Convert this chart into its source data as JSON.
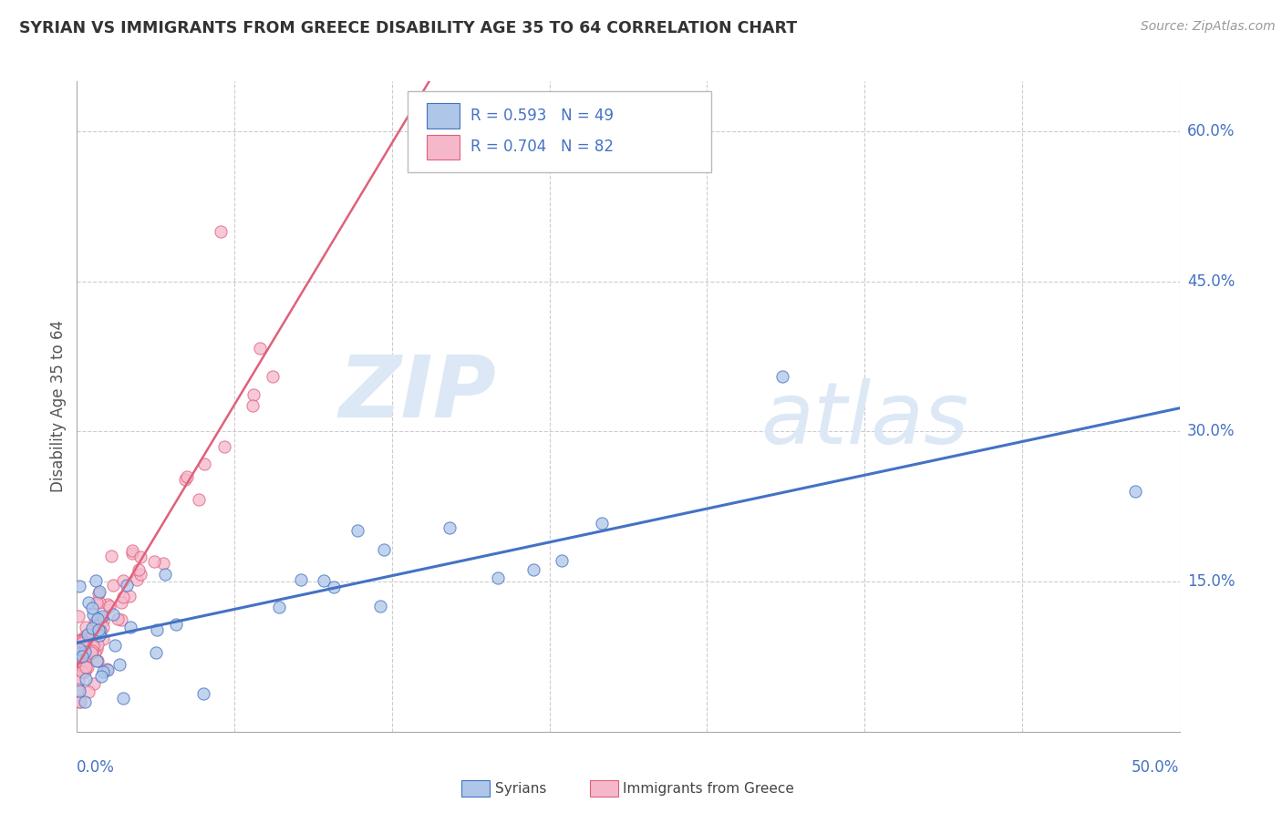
{
  "title": "SYRIAN VS IMMIGRANTS FROM GREECE DISABILITY AGE 35 TO 64 CORRELATION CHART",
  "source": "Source: ZipAtlas.com",
  "ylabel": "Disability Age 35 to 64",
  "legend_label1": "Syrians",
  "legend_label2": "Immigrants from Greece",
  "r1": 0.593,
  "n1": 49,
  "r2": 0.704,
  "n2": 82,
  "color_syrian_fill": "#aec6e8",
  "color_syrian_edge": "#4472c4",
  "color_greece_fill": "#f5b8cb",
  "color_greece_edge": "#e0607a",
  "color_line_syrian": "#4472c4",
  "color_line_greece": "#e0607a",
  "watermark_zip": "ZIP",
  "watermark_atlas": "atlas",
  "xlim": [
    0.0,
    0.5
  ],
  "ylim": [
    0.0,
    0.65
  ],
  "yticks": [
    0.0,
    0.15,
    0.3,
    0.45,
    0.6
  ],
  "ytick_labels": [
    "",
    "15.0%",
    "30.0%",
    "45.0%",
    "60.0%"
  ],
  "xtick_labels": [
    "0.0%",
    "50.0%"
  ],
  "background_color": "#ffffff",
  "grid_color": "#cccccc",
  "grid_linestyle": "--"
}
